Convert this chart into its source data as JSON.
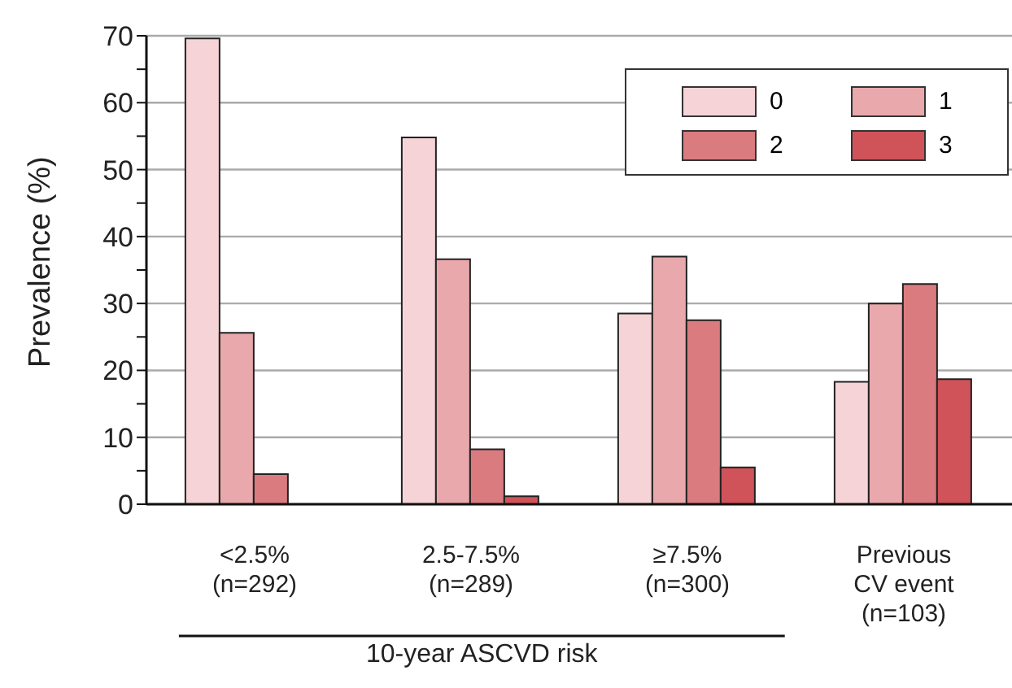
{
  "chart_data": {
    "type": "bar",
    "categories": [
      "<2.5%\n(n=292)",
      "2.5-7.5%\n(n=289)",
      "≥7.5%\n(n=300)",
      "Previous\nCV event\n(n=103)"
    ],
    "series": [
      {
        "name": "0",
        "color": "#f5d3d7",
        "values": [
          69.6,
          54.8,
          28.5,
          18.3
        ]
      },
      {
        "name": "1",
        "color": "#e9a8ac",
        "values": [
          25.6,
          36.6,
          37.0,
          30.0
        ]
      },
      {
        "name": "2",
        "color": "#da7b80",
        "values": [
          4.5,
          8.2,
          27.5,
          32.9
        ]
      },
      {
        "name": "3",
        "color": "#d0535a",
        "values": [
          0,
          1.2,
          5.5,
          18.7
        ]
      }
    ],
    "ylabel": "Prevalence (%)",
    "xlabel": "10-year ASCVD risk",
    "ylim": [
      0,
      70
    ],
    "yticks": [
      0,
      {
        "value": 5,
        "label": null
      },
      10,
      {
        "value": 15,
        "label": null
      },
      20,
      {
        "value": 25,
        "label": null
      },
      30,
      {
        "value": 35,
        "label": null
      },
      40,
      {
        "value": 45,
        "label": null
      },
      50,
      {
        "value": 55,
        "label": null
      },
      60,
      {
        "value": 65,
        "label": null
      },
      70
    ],
    "grid": "y",
    "legend": "top right"
  }
}
